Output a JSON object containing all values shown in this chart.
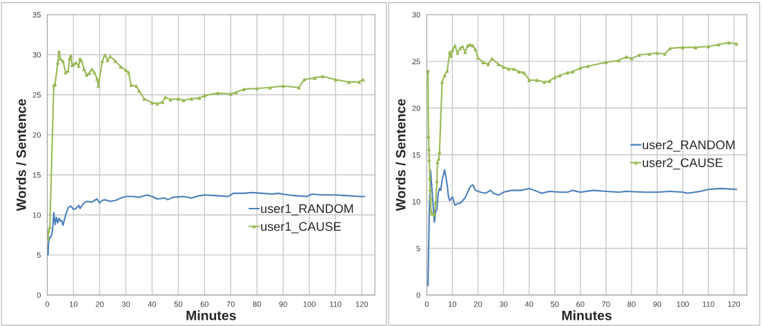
{
  "chart_data": [
    {
      "type": "line",
      "xlabel": "Minutes",
      "ylabel": "Words / Sentence",
      "xlim": [
        0,
        125
      ],
      "xticks": [
        0,
        10,
        20,
        30,
        40,
        50,
        60,
        70,
        80,
        90,
        100,
        110,
        120
      ],
      "ylim": [
        0,
        35
      ],
      "yticks": [
        0,
        5,
        10,
        15,
        20,
        25,
        30,
        35
      ],
      "grid": true,
      "legend": "bottom right",
      "series": [
        {
          "name": "user1_RANDOM",
          "color": "#4a7ebb",
          "marker": "none",
          "x": [
            0.3,
            0.5,
            1,
            1.5,
            2,
            2.5,
            3,
            3.5,
            4,
            4.5,
            5,
            5.5,
            6,
            7,
            8,
            9,
            10,
            11,
            12,
            12.5,
            14,
            15,
            17,
            19,
            20,
            21,
            22,
            24,
            26,
            28,
            30,
            33,
            35,
            38,
            40,
            42,
            45,
            46,
            48,
            52,
            55,
            58,
            60,
            65,
            69,
            71,
            75,
            78,
            82,
            86,
            88,
            92,
            95,
            99,
            101,
            105,
            110,
            115,
            119,
            121
          ],
          "values": [
            5,
            6.5,
            7.2,
            7.3,
            8,
            10.3,
            8.8,
            9.7,
            9,
            9.6,
            9.2,
            9.3,
            8.7,
            10,
            10.9,
            11.1,
            10.7,
            10.8,
            11.2,
            10.8,
            11.5,
            11.7,
            11.6,
            12,
            11.5,
            11.8,
            11.9,
            11.7,
            11.8,
            12.1,
            12.3,
            12.3,
            12.2,
            12.5,
            12.3,
            12.0,
            12.1,
            11.9,
            12.2,
            12.3,
            12.1,
            12.4,
            12.5,
            12.4,
            12.3,
            12.7,
            12.7,
            12.8,
            12.7,
            12.6,
            12.7,
            12.5,
            12.4,
            12.3,
            12.6,
            12.5,
            12.5,
            12.4,
            12.3,
            12.3
          ]
        },
        {
          "name": "user1_CAUSE",
          "color": "#98b954",
          "marker": "triangle",
          "x": [
            0.3,
            0.5,
            1,
            2.5,
            3,
            4,
            4.5,
            5,
            6,
            7,
            8,
            8.5,
            9,
            9.5,
            10,
            11,
            12,
            12.5,
            13,
            14,
            15,
            16,
            17,
            18,
            19,
            19.5,
            21,
            22,
            23,
            24,
            26,
            28,
            30,
            31,
            32,
            34,
            35,
            37,
            40,
            42,
            44,
            45,
            47,
            50,
            52,
            55,
            58,
            60,
            65,
            70,
            72,
            75,
            80,
            85,
            90,
            96,
            98,
            102,
            105,
            110,
            115,
            119,
            120.5
          ],
          "values": [
            7,
            8,
            8.5,
            26.2,
            26.3,
            29,
            30.4,
            29.5,
            29.2,
            27.8,
            28,
            29.5,
            29.9,
            28.7,
            28.8,
            29,
            28.6,
            29.5,
            29.3,
            28.2,
            27.5,
            27.7,
            28.2,
            27.8,
            27,
            26.1,
            29.2,
            30,
            29.3,
            29.8,
            29.2,
            28.5,
            28.1,
            27.8,
            26.2,
            26.1,
            25.5,
            24.5,
            24.0,
            23.9,
            24.1,
            24.7,
            24.4,
            24.5,
            24.3,
            24.5,
            24.6,
            24.9,
            25.2,
            25.1,
            25.3,
            25.7,
            25.8,
            25.9,
            26.1,
            25.9,
            26.9,
            27.1,
            27.3,
            26.9,
            26.6,
            26.6,
            26.9
          ]
        }
      ]
    },
    {
      "type": "line",
      "xlabel": "Minutes",
      "ylabel": "Words / Sentence",
      "xlim": [
        0,
        125
      ],
      "xticks": [
        0,
        10,
        20,
        30,
        40,
        50,
        60,
        70,
        80,
        90,
        100,
        110,
        120
      ],
      "ylim": [
        0,
        30
      ],
      "yticks": [
        0,
        5,
        10,
        15,
        20,
        25,
        30
      ],
      "grid": true,
      "legend": "right",
      "series": [
        {
          "name": "user2_RANDOM",
          "color": "#4a7ebb",
          "marker": "none",
          "x": [
            0.5,
            1,
            1.5,
            2,
            3,
            3.5,
            4,
            4.5,
            5,
            5.5,
            6,
            7,
            8,
            8.5,
            9,
            10,
            11,
            12,
            13,
            14,
            15,
            16,
            17,
            18,
            19,
            21,
            23,
            25,
            26,
            28,
            30,
            33,
            37,
            40,
            42,
            45,
            48,
            52,
            55,
            57,
            60,
            65,
            70,
            75,
            78,
            85,
            90,
            95,
            100,
            102,
            107,
            110,
            115,
            121
          ],
          "values": [
            1,
            8.8,
            13.3,
            11.5,
            7.8,
            8.9,
            9.2,
            10.9,
            11.4,
            11.2,
            12.3,
            13.4,
            11.8,
            10.5,
            10.1,
            10.5,
            9.6,
            9.8,
            9.8,
            10.1,
            10.4,
            11,
            11.6,
            11.8,
            11.2,
            11,
            10.9,
            11.2,
            10.9,
            10.7,
            11,
            11.2,
            11.2,
            11.4,
            11.2,
            10.9,
            11.1,
            11,
            11,
            11.2,
            11.0,
            11.2,
            11.1,
            11.0,
            11.1,
            11.0,
            11.0,
            11.1,
            11.0,
            10.9,
            11.1,
            11.3,
            11.4,
            11.3
          ]
        },
        {
          "name": "user2_CAUSE",
          "color": "#98b954",
          "marker": "triangle",
          "x": [
            0.5,
            0.7,
            0.9,
            1,
            1.2,
            1.3,
            1.5,
            1.7,
            2,
            3,
            3.5,
            4,
            4.2,
            4.7,
            5,
            6,
            7,
            8,
            9,
            9.5,
            10,
            11,
            12,
            13,
            14,
            15,
            16,
            17,
            18,
            19,
            20,
            22,
            24,
            25.5,
            28,
            30,
            32,
            34,
            36,
            38,
            40,
            43,
            46,
            48,
            50,
            52,
            55,
            57,
            60,
            63,
            70,
            75,
            78,
            80,
            83,
            87,
            90,
            93,
            95,
            100,
            105,
            110,
            114,
            118,
            121
          ],
          "values": [
            24,
            17,
            15.6,
            14.5,
            12.5,
            11.3,
            10.3,
            9,
            8.7,
            8.6,
            9.9,
            12.2,
            14.2,
            14.6,
            15.3,
            22.8,
            23.5,
            24,
            26,
            25.6,
            26.2,
            26.7,
            25.9,
            26.4,
            26.6,
            26.0,
            26.7,
            26.8,
            26.7,
            26.3,
            25.4,
            24.9,
            24.7,
            25.3,
            24.7,
            24.4,
            24.2,
            24.2,
            23.9,
            23.8,
            23.0,
            23.0,
            22.8,
            22.9,
            23.3,
            23.5,
            23.8,
            23.9,
            24.3,
            24.5,
            24.9,
            25.1,
            25.5,
            25.3,
            25.7,
            25.8,
            25.9,
            25.8,
            26.4,
            26.5,
            26.5,
            26.6,
            26.8,
            27.0,
            26.9
          ]
        }
      ]
    }
  ]
}
